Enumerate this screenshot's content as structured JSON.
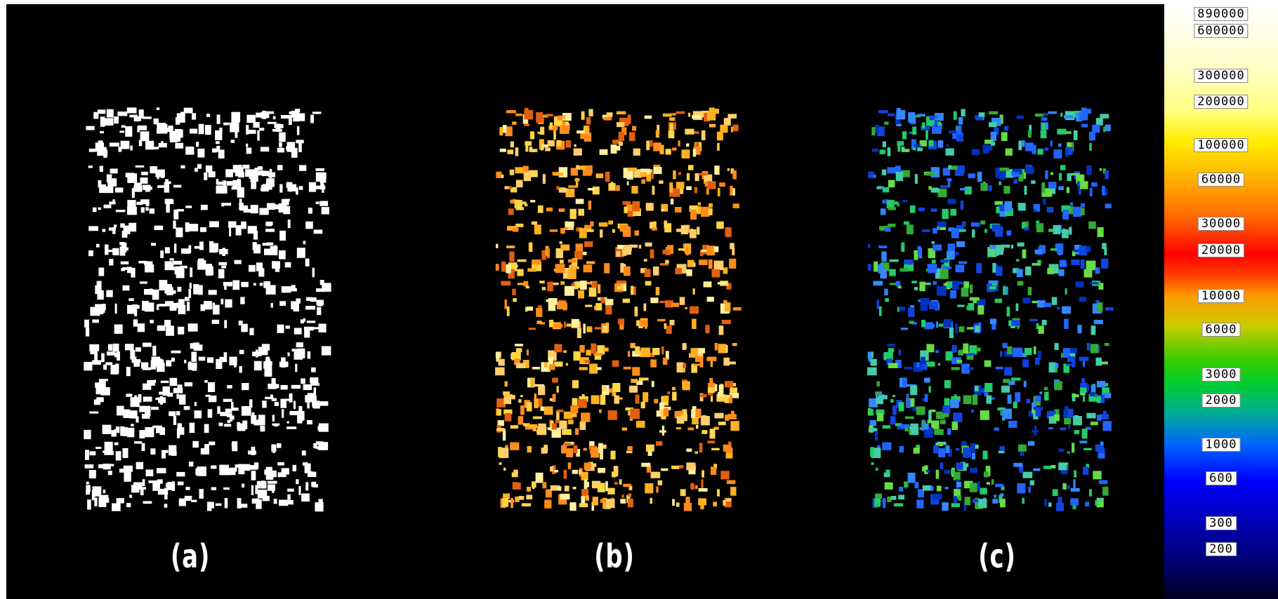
{
  "panels": [
    {
      "label": "(a)",
      "style": "binary"
    },
    {
      "label": "(b)",
      "style": "heat"
    },
    {
      "label": "(c)",
      "style": "rainbow"
    }
  ],
  "colorbar": {
    "ticks": [
      "890000",
      "600000",
      "300000",
      "200000",
      "100000",
      "60000",
      "30000",
      "20000",
      "10000",
      "6000",
      "3000",
      "2000",
      "1000",
      "600",
      "300",
      "200"
    ],
    "colors": {
      "top": "#ffffff",
      "yellow": "#ffff00",
      "orange": "#ff7f00",
      "red": "#ff0000",
      "green": "#00cc00",
      "blue": "#0000ff",
      "bottom": "#000022"
    }
  },
  "colors": {
    "background": "#000000",
    "label_text": "#ffffff"
  }
}
